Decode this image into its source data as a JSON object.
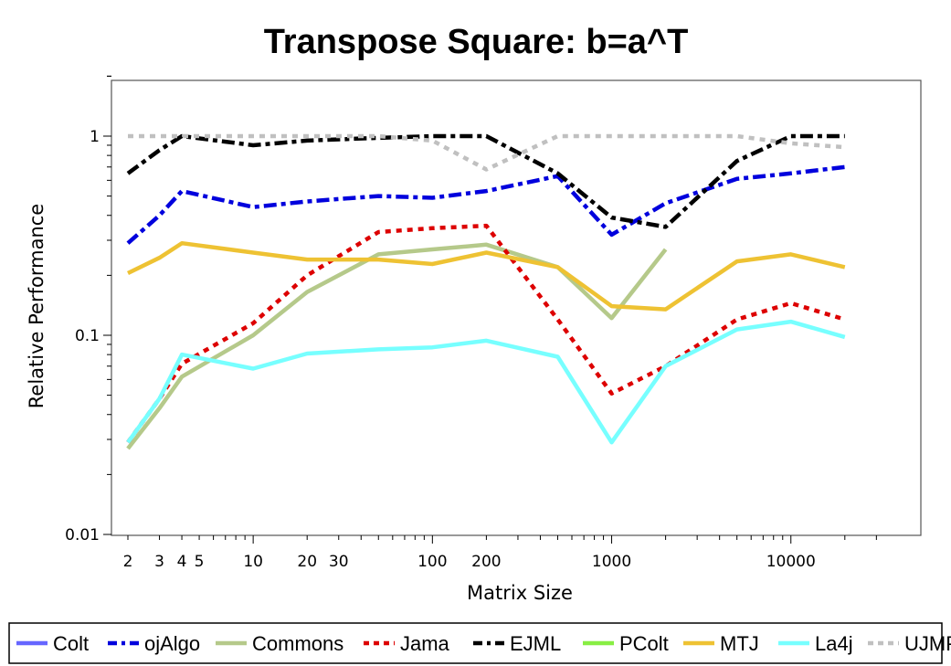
{
  "chart_data": {
    "type": "line",
    "title": "Transpose Square: b=a^T",
    "xlabel": "Matrix Size",
    "ylabel": "Relative Performance",
    "xscale": "log",
    "yscale": "log",
    "xlim": [
      1.8,
      30000
    ],
    "ylim": [
      0.01,
      2
    ],
    "x_tick_labels": [
      "2",
      "3",
      "4",
      "5",
      "10",
      "20",
      "30",
      "100",
      "200",
      "1000",
      "10000"
    ],
    "y_tick_labels": [
      "0.01",
      "0.1",
      "1"
    ],
    "grid": false,
    "legend_position": "bottom",
    "series": [
      {
        "name": "Colt",
        "color": "#6666ff",
        "style": "solid",
        "x": [],
        "y": []
      },
      {
        "name": "ojAlgo",
        "color": "#0000dd",
        "style": "dashdot",
        "x": [
          2,
          3,
          4,
          10,
          20,
          50,
          100,
          200,
          500,
          1000,
          2000,
          5000,
          10000,
          20000
        ],
        "y": [
          0.29,
          0.4,
          0.53,
          0.44,
          0.47,
          0.5,
          0.49,
          0.53,
          0.63,
          0.32,
          0.46,
          0.61,
          0.65,
          0.7
        ]
      },
      {
        "name": "Commons",
        "color": "#b5c98a",
        "style": "solid",
        "x": [
          2,
          3,
          4,
          10,
          20,
          50,
          100,
          200,
          500,
          1000,
          2000
        ],
        "y": [
          0.027,
          0.043,
          0.062,
          0.1,
          0.165,
          0.255,
          0.27,
          0.285,
          0.22,
          0.122,
          0.27
        ]
      },
      {
        "name": "Jama",
        "color": "#dd0000",
        "style": "dotted",
        "x": [
          2,
          3,
          4,
          10,
          20,
          50,
          100,
          200,
          500,
          1000,
          2000,
          5000,
          10000,
          20000
        ],
        "y": [
          0.029,
          0.048,
          0.072,
          0.115,
          0.2,
          0.33,
          0.345,
          0.355,
          0.12,
          0.051,
          0.07,
          0.12,
          0.145,
          0.12
        ]
      },
      {
        "name": "EJML",
        "color": "#000000",
        "style": "dashdot",
        "x": [
          2,
          3,
          4,
          10,
          20,
          50,
          100,
          200,
          500,
          1000,
          2000,
          5000,
          10000,
          20000
        ],
        "y": [
          0.65,
          0.85,
          1.0,
          0.9,
          0.95,
          0.98,
          1.0,
          1.0,
          0.65,
          0.39,
          0.35,
          0.75,
          1.0,
          1.0
        ]
      },
      {
        "name": "PColt",
        "color": "#88ee44",
        "style": "solid",
        "x": [],
        "y": []
      },
      {
        "name": "MTJ",
        "color": "#eec233",
        "style": "solid",
        "x": [
          2,
          3,
          4,
          10,
          20,
          50,
          100,
          200,
          500,
          1000,
          2000,
          5000,
          10000,
          20000
        ],
        "y": [
          0.205,
          0.245,
          0.29,
          0.26,
          0.24,
          0.24,
          0.228,
          0.26,
          0.22,
          0.14,
          0.135,
          0.235,
          0.255,
          0.22
        ]
      },
      {
        "name": "La4j",
        "color": "#77ffff",
        "style": "solid",
        "x": [
          2,
          3,
          4,
          10,
          20,
          50,
          100,
          200,
          500,
          1000,
          2000,
          5000,
          10000,
          20000
        ],
        "y": [
          0.029,
          0.048,
          0.08,
          0.068,
          0.081,
          0.085,
          0.087,
          0.094,
          0.078,
          0.029,
          0.07,
          0.107,
          0.117,
          0.098
        ]
      },
      {
        "name": "UJMP",
        "color": "#c0c0c0",
        "style": "dotted",
        "x": [
          2,
          3,
          4,
          10,
          20,
          50,
          100,
          200,
          500,
          1000,
          2000,
          5000,
          10000,
          20000
        ],
        "y": [
          1.0,
          1.0,
          1.0,
          1.0,
          1.0,
          1.0,
          0.95,
          0.68,
          1.0,
          1.0,
          1.0,
          1.0,
          0.92,
          0.88
        ]
      }
    ]
  }
}
